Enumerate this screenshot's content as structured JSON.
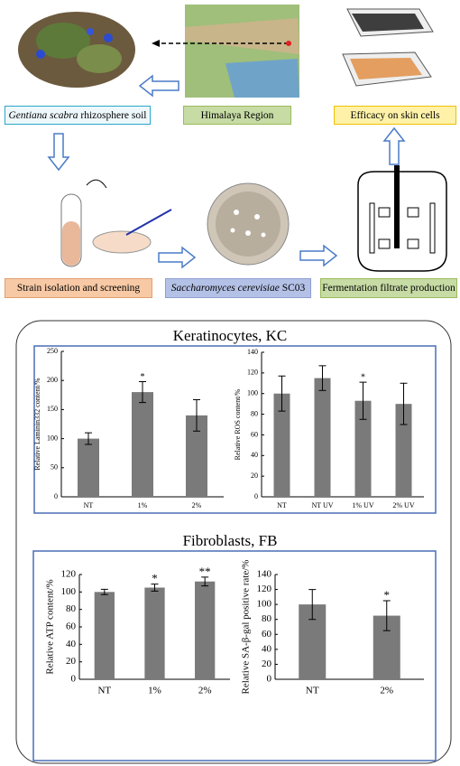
{
  "flow": {
    "soil": {
      "italic": "Gentiana scabra",
      "text": " rhizosphere soil"
    },
    "region": "Himalaya Region",
    "efficacy": "Efficacy on skin cells",
    "isolation": "Strain isolation and screening",
    "strain": {
      "italic": "Saccharomyces cerevisiae",
      "text": " SC03"
    },
    "fermentation": "Fermentation filtrate production"
  },
  "panels": {
    "kc": "Keratinocytes, KC",
    "fb": "Fibroblasts, FB"
  },
  "chart_data": [
    {
      "type": "bar",
      "y_label": "Relative Laminin332 content/%",
      "categories": [
        "NT",
        "1%",
        "2%"
      ],
      "values": [
        100,
        180,
        140
      ],
      "errors": [
        10,
        18,
        27
      ],
      "significance": [
        null,
        "*",
        null
      ],
      "color": "#7a7a7a",
      "ylim": [
        0,
        250
      ],
      "yticks": [
        0,
        50,
        100,
        150,
        200,
        250
      ]
    },
    {
      "type": "bar",
      "y_label": "Relative ROS content/%",
      "categories": [
        "NT",
        "NT UV",
        "1% UV",
        "2% UV"
      ],
      "values": [
        100,
        115,
        93,
        90
      ],
      "errors": [
        17,
        12,
        18,
        20
      ],
      "significance": [
        null,
        null,
        "*",
        null
      ],
      "color": "#7a7a7a",
      "ylim": [
        0,
        140
      ],
      "yticks": [
        0,
        20,
        40,
        60,
        80,
        100,
        120,
        140
      ]
    },
    {
      "type": "bar",
      "y_label": "Relative ATP content/%",
      "categories": [
        "NT",
        "1%",
        "2%"
      ],
      "values": [
        100,
        105,
        112
      ],
      "errors": [
        3,
        4,
        5
      ],
      "significance": [
        null,
        "*",
        "**"
      ],
      "color": "#7a7a7a",
      "ylim": [
        0,
        120
      ],
      "yticks": [
        0,
        20,
        40,
        60,
        80,
        100,
        120
      ]
    },
    {
      "type": "bar",
      "y_label": "Relative SA-β-gal positive rate/%",
      "categories": [
        "NT",
        "2%"
      ],
      "values": [
        100,
        85
      ],
      "errors": [
        20,
        20
      ],
      "significance": [
        null,
        "*"
      ],
      "color": "#7a7a7a",
      "ylim": [
        0,
        140
      ],
      "yticks": [
        0,
        20,
        40,
        60,
        80,
        100,
        120,
        140
      ]
    }
  ]
}
